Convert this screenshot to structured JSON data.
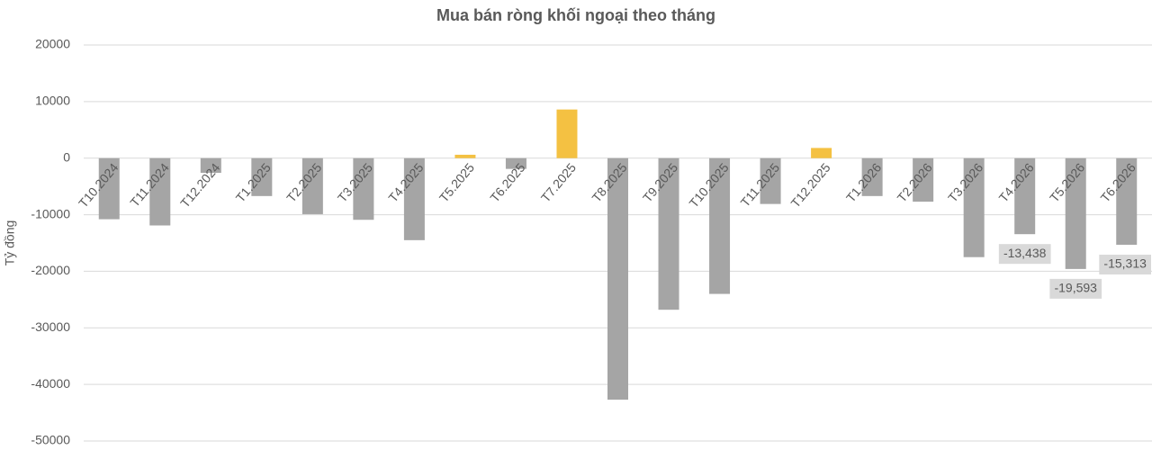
{
  "chart_data": {
    "type": "bar",
    "title": "Mua bán ròng khối ngoại theo tháng",
    "y_label": "Tỷ đồng",
    "categories": [
      "T10.2024",
      "T11.2024",
      "T12.2024",
      "T1.2025",
      "T2.2025",
      "T3.2025",
      "T4.2025",
      "T5.2025",
      "T6.2025",
      "T7.2025",
      "T8.2025",
      "T9.2025",
      "T10.2025",
      "T11.2025",
      "T12.2025",
      "T1.2026",
      "T2.2026",
      "T3.2026",
      "T4.2026",
      "T5.2026",
      "T6.2026"
    ],
    "values": [
      -10800,
      -11900,
      -2600,
      -6700,
      -9900,
      -10900,
      -14500,
      600,
      -1900,
      8600,
      -42700,
      -26800,
      -24000,
      -8100,
      1800,
      -6700,
      -7700,
      -17500,
      -13438,
      -19593,
      -15313
    ],
    "value_labels": [
      null,
      null,
      null,
      null,
      null,
      null,
      null,
      null,
      null,
      null,
      null,
      null,
      null,
      null,
      null,
      null,
      null,
      null,
      "-13,438",
      "-19,593",
      "-15,313"
    ],
    "colors": [
      "#a5a5a5",
      "#a5a5a5",
      "#a5a5a5",
      "#a5a5a5",
      "#a5a5a5",
      "#a5a5a5",
      "#a5a5a5",
      "#f4c142",
      "#a5a5a5",
      "#f4c142",
      "#a5a5a5",
      "#a5a5a5",
      "#a5a5a5",
      "#a5a5a5",
      "#f4c142",
      "#a5a5a5",
      "#a5a5a5",
      "#a5a5a5",
      "#a5a5a5",
      "#a5a5a5",
      "#a5a5a5"
    ],
    "ylim": [
      -50000,
      20000
    ],
    "yticks": [
      -50000,
      -40000,
      -30000,
      -20000,
      -10000,
      0,
      10000,
      20000
    ],
    "grid": true
  }
}
